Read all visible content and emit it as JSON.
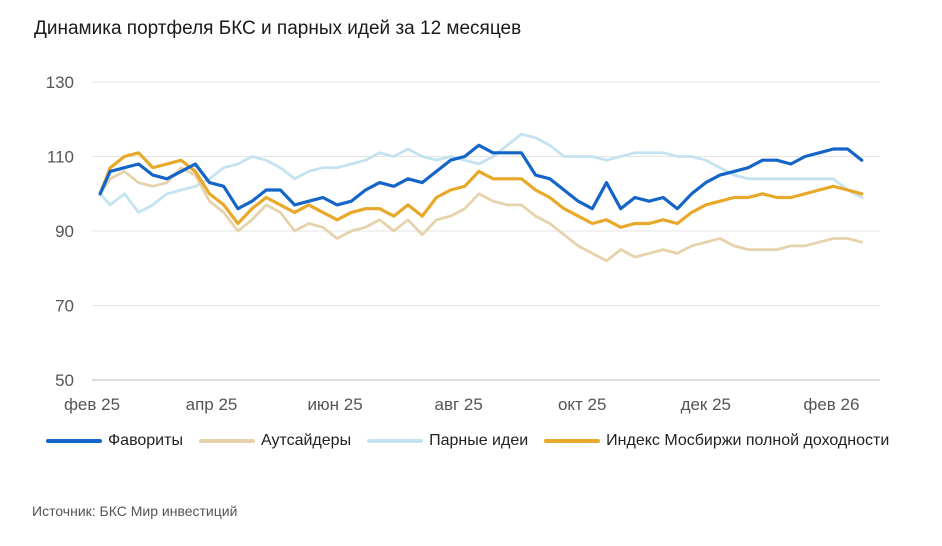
{
  "title": "Динамика портфеля БКС и парных идей за 12 месяцев",
  "source": "Источник: БКС Мир инвестиций",
  "colors": {
    "favorites": "#1565c8",
    "outsiders": "#e6d3ac",
    "pairs": "#c4e3f1",
    "index": "#e8a82a",
    "grid": "#e6e6e6",
    "axis": "#555555"
  },
  "chart_data": {
    "type": "line",
    "title": "Динамика портфеля БКС и парных идей за 12 месяцев",
    "xlabel": "",
    "ylabel": "",
    "ylim": [
      50,
      130
    ],
    "yticks": [
      50,
      70,
      90,
      110,
      130
    ],
    "xlim": [
      "2025-02-01",
      "2026-02-25"
    ],
    "xticks": [
      {
        "date": "2025-02-01",
        "label": "фев 25"
      },
      {
        "date": "2025-04-01",
        "label": "апр 25"
      },
      {
        "date": "2025-06-01",
        "label": "июн 25"
      },
      {
        "date": "2025-08-01",
        "label": "авг 25"
      },
      {
        "date": "2025-10-01",
        "label": "окт 25"
      },
      {
        "date": "2025-12-01",
        "label": "дек 25"
      },
      {
        "date": "2026-02-01",
        "label": "фев 26"
      }
    ],
    "grid": true,
    "legend_position": "bottom",
    "series": [
      {
        "name": "Фавориты",
        "color_key": "favorites",
        "points": [
          [
            "2025-02-05",
            100
          ],
          [
            "2025-02-10",
            106
          ],
          [
            "2025-02-17",
            107
          ],
          [
            "2025-02-24",
            108
          ],
          [
            "2025-03-03",
            105
          ],
          [
            "2025-03-10",
            104
          ],
          [
            "2025-03-17",
            106
          ],
          [
            "2025-03-24",
            108
          ],
          [
            "2025-03-31",
            103
          ],
          [
            "2025-04-07",
            102
          ],
          [
            "2025-04-14",
            96
          ],
          [
            "2025-04-21",
            98
          ],
          [
            "2025-04-28",
            101
          ],
          [
            "2025-05-05",
            101
          ],
          [
            "2025-05-12",
            97
          ],
          [
            "2025-05-19",
            98
          ],
          [
            "2025-05-26",
            99
          ],
          [
            "2025-06-02",
            97
          ],
          [
            "2025-06-09",
            98
          ],
          [
            "2025-06-16",
            101
          ],
          [
            "2025-06-23",
            103
          ],
          [
            "2025-06-30",
            102
          ],
          [
            "2025-07-07",
            104
          ],
          [
            "2025-07-14",
            103
          ],
          [
            "2025-07-21",
            106
          ],
          [
            "2025-07-28",
            109
          ],
          [
            "2025-08-04",
            110
          ],
          [
            "2025-08-11",
            113
          ],
          [
            "2025-08-18",
            111
          ],
          [
            "2025-08-25",
            111
          ],
          [
            "2025-09-01",
            111
          ],
          [
            "2025-09-08",
            105
          ],
          [
            "2025-09-15",
            104
          ],
          [
            "2025-09-22",
            101
          ],
          [
            "2025-09-29",
            98
          ],
          [
            "2025-10-06",
            96
          ],
          [
            "2025-10-13",
            103
          ],
          [
            "2025-10-20",
            96
          ],
          [
            "2025-10-27",
            99
          ],
          [
            "2025-11-03",
            98
          ],
          [
            "2025-11-10",
            99
          ],
          [
            "2025-11-17",
            96
          ],
          [
            "2025-11-24",
            100
          ],
          [
            "2025-12-01",
            103
          ],
          [
            "2025-12-08",
            105
          ],
          [
            "2025-12-15",
            106
          ],
          [
            "2025-12-22",
            107
          ],
          [
            "2025-12-29",
            109
          ],
          [
            "2026-01-05",
            109
          ],
          [
            "2026-01-12",
            108
          ],
          [
            "2026-01-19",
            110
          ],
          [
            "2026-01-26",
            111
          ],
          [
            "2026-02-02",
            112
          ],
          [
            "2026-02-09",
            112
          ],
          [
            "2026-02-16",
            109
          ]
        ]
      },
      {
        "name": "Аутсайдеры",
        "color_key": "outsiders",
        "points": [
          [
            "2025-02-05",
            100
          ],
          [
            "2025-02-10",
            104
          ],
          [
            "2025-02-17",
            106
          ],
          [
            "2025-02-24",
            103
          ],
          [
            "2025-03-03",
            102
          ],
          [
            "2025-03-10",
            103
          ],
          [
            "2025-03-17",
            107
          ],
          [
            "2025-03-24",
            105
          ],
          [
            "2025-03-31",
            98
          ],
          [
            "2025-04-07",
            95
          ],
          [
            "2025-04-14",
            90
          ],
          [
            "2025-04-21",
            93
          ],
          [
            "2025-04-28",
            97
          ],
          [
            "2025-05-05",
            95
          ],
          [
            "2025-05-12",
            90
          ],
          [
            "2025-05-19",
            92
          ],
          [
            "2025-05-26",
            91
          ],
          [
            "2025-06-02",
            88
          ],
          [
            "2025-06-09",
            90
          ],
          [
            "2025-06-16",
            91
          ],
          [
            "2025-06-23",
            93
          ],
          [
            "2025-06-30",
            90
          ],
          [
            "2025-07-07",
            93
          ],
          [
            "2025-07-14",
            89
          ],
          [
            "2025-07-21",
            93
          ],
          [
            "2025-07-28",
            94
          ],
          [
            "2025-08-04",
            96
          ],
          [
            "2025-08-11",
            100
          ],
          [
            "2025-08-18",
            98
          ],
          [
            "2025-08-25",
            97
          ],
          [
            "2025-09-01",
            97
          ],
          [
            "2025-09-08",
            94
          ],
          [
            "2025-09-15",
            92
          ],
          [
            "2025-09-22",
            89
          ],
          [
            "2025-09-29",
            86
          ],
          [
            "2025-10-06",
            84
          ],
          [
            "2025-10-13",
            82
          ],
          [
            "2025-10-20",
            85
          ],
          [
            "2025-10-27",
            83
          ],
          [
            "2025-11-03",
            84
          ],
          [
            "2025-11-10",
            85
          ],
          [
            "2025-11-17",
            84
          ],
          [
            "2025-11-24",
            86
          ],
          [
            "2025-12-01",
            87
          ],
          [
            "2025-12-08",
            88
          ],
          [
            "2025-12-15",
            86
          ],
          [
            "2025-12-22",
            85
          ],
          [
            "2025-12-29",
            85
          ],
          [
            "2026-01-05",
            85
          ],
          [
            "2026-01-12",
            86
          ],
          [
            "2026-01-19",
            86
          ],
          [
            "2026-01-26",
            87
          ],
          [
            "2026-02-02",
            88
          ],
          [
            "2026-02-09",
            88
          ],
          [
            "2026-02-16",
            87
          ]
        ]
      },
      {
        "name": "Парные идеи",
        "color_key": "pairs",
        "points": [
          [
            "2025-02-05",
            100
          ],
          [
            "2025-02-10",
            97
          ],
          [
            "2025-02-17",
            100
          ],
          [
            "2025-02-24",
            95
          ],
          [
            "2025-03-03",
            97
          ],
          [
            "2025-03-10",
            100
          ],
          [
            "2025-03-17",
            101
          ],
          [
            "2025-03-24",
            102
          ],
          [
            "2025-03-31",
            104
          ],
          [
            "2025-04-07",
            107
          ],
          [
            "2025-04-14",
            108
          ],
          [
            "2025-04-21",
            110
          ],
          [
            "2025-04-28",
            109
          ],
          [
            "2025-05-05",
            107
          ],
          [
            "2025-05-12",
            104
          ],
          [
            "2025-05-19",
            106
          ],
          [
            "2025-05-26",
            107
          ],
          [
            "2025-06-02",
            107
          ],
          [
            "2025-06-09",
            108
          ],
          [
            "2025-06-16",
            109
          ],
          [
            "2025-06-23",
            111
          ],
          [
            "2025-06-30",
            110
          ],
          [
            "2025-07-07",
            112
          ],
          [
            "2025-07-14",
            110
          ],
          [
            "2025-07-21",
            109
          ],
          [
            "2025-07-28",
            110
          ],
          [
            "2025-08-04",
            109
          ],
          [
            "2025-08-11",
            108
          ],
          [
            "2025-08-18",
            110
          ],
          [
            "2025-08-25",
            113
          ],
          [
            "2025-09-01",
            116
          ],
          [
            "2025-09-08",
            115
          ],
          [
            "2025-09-15",
            113
          ],
          [
            "2025-09-22",
            110
          ],
          [
            "2025-09-29",
            110
          ],
          [
            "2025-10-06",
            110
          ],
          [
            "2025-10-13",
            109
          ],
          [
            "2025-10-20",
            110
          ],
          [
            "2025-10-27",
            111
          ],
          [
            "2025-11-03",
            111
          ],
          [
            "2025-11-10",
            111
          ],
          [
            "2025-11-17",
            110
          ],
          [
            "2025-11-24",
            110
          ],
          [
            "2025-12-01",
            109
          ],
          [
            "2025-12-08",
            107
          ],
          [
            "2025-12-15",
            105
          ],
          [
            "2025-12-22",
            104
          ],
          [
            "2025-12-29",
            104
          ],
          [
            "2026-01-05",
            104
          ],
          [
            "2026-01-12",
            104
          ],
          [
            "2026-01-19",
            104
          ],
          [
            "2026-01-26",
            104
          ],
          [
            "2026-02-02",
            104
          ],
          [
            "2026-02-09",
            101
          ],
          [
            "2026-02-16",
            99
          ]
        ]
      },
      {
        "name": "Индекс Мосбиржи полной доходности",
        "color_key": "index",
        "points": [
          [
            "2025-02-05",
            100
          ],
          [
            "2025-02-10",
            107
          ],
          [
            "2025-02-17",
            110
          ],
          [
            "2025-02-24",
            111
          ],
          [
            "2025-03-03",
            107
          ],
          [
            "2025-03-10",
            108
          ],
          [
            "2025-03-17",
            109
          ],
          [
            "2025-03-24",
            106
          ],
          [
            "2025-03-31",
            100
          ],
          [
            "2025-04-07",
            97
          ],
          [
            "2025-04-14",
            92
          ],
          [
            "2025-04-21",
            96
          ],
          [
            "2025-04-28",
            99
          ],
          [
            "2025-05-05",
            97
          ],
          [
            "2025-05-12",
            95
          ],
          [
            "2025-05-19",
            97
          ],
          [
            "2025-05-26",
            95
          ],
          [
            "2025-06-02",
            93
          ],
          [
            "2025-06-09",
            95
          ],
          [
            "2025-06-16",
            96
          ],
          [
            "2025-06-23",
            96
          ],
          [
            "2025-06-30",
            94
          ],
          [
            "2025-07-07",
            97
          ],
          [
            "2025-07-14",
            94
          ],
          [
            "2025-07-21",
            99
          ],
          [
            "2025-07-28",
            101
          ],
          [
            "2025-08-04",
            102
          ],
          [
            "2025-08-11",
            106
          ],
          [
            "2025-08-18",
            104
          ],
          [
            "2025-08-25",
            104
          ],
          [
            "2025-09-01",
            104
          ],
          [
            "2025-09-08",
            101
          ],
          [
            "2025-09-15",
            99
          ],
          [
            "2025-09-22",
            96
          ],
          [
            "2025-09-29",
            94
          ],
          [
            "2025-10-06",
            92
          ],
          [
            "2025-10-13",
            93
          ],
          [
            "2025-10-20",
            91
          ],
          [
            "2025-10-27",
            92
          ],
          [
            "2025-11-03",
            92
          ],
          [
            "2025-11-10",
            93
          ],
          [
            "2025-11-17",
            92
          ],
          [
            "2025-11-24",
            95
          ],
          [
            "2025-12-01",
            97
          ],
          [
            "2025-12-08",
            98
          ],
          [
            "2025-12-15",
            99
          ],
          [
            "2025-12-22",
            99
          ],
          [
            "2025-12-29",
            100
          ],
          [
            "2026-01-05",
            99
          ],
          [
            "2026-01-12",
            99
          ],
          [
            "2026-01-19",
            100
          ],
          [
            "2026-01-26",
            101
          ],
          [
            "2026-02-02",
            102
          ],
          [
            "2026-02-09",
            101
          ],
          [
            "2026-02-16",
            100
          ]
        ]
      }
    ]
  }
}
